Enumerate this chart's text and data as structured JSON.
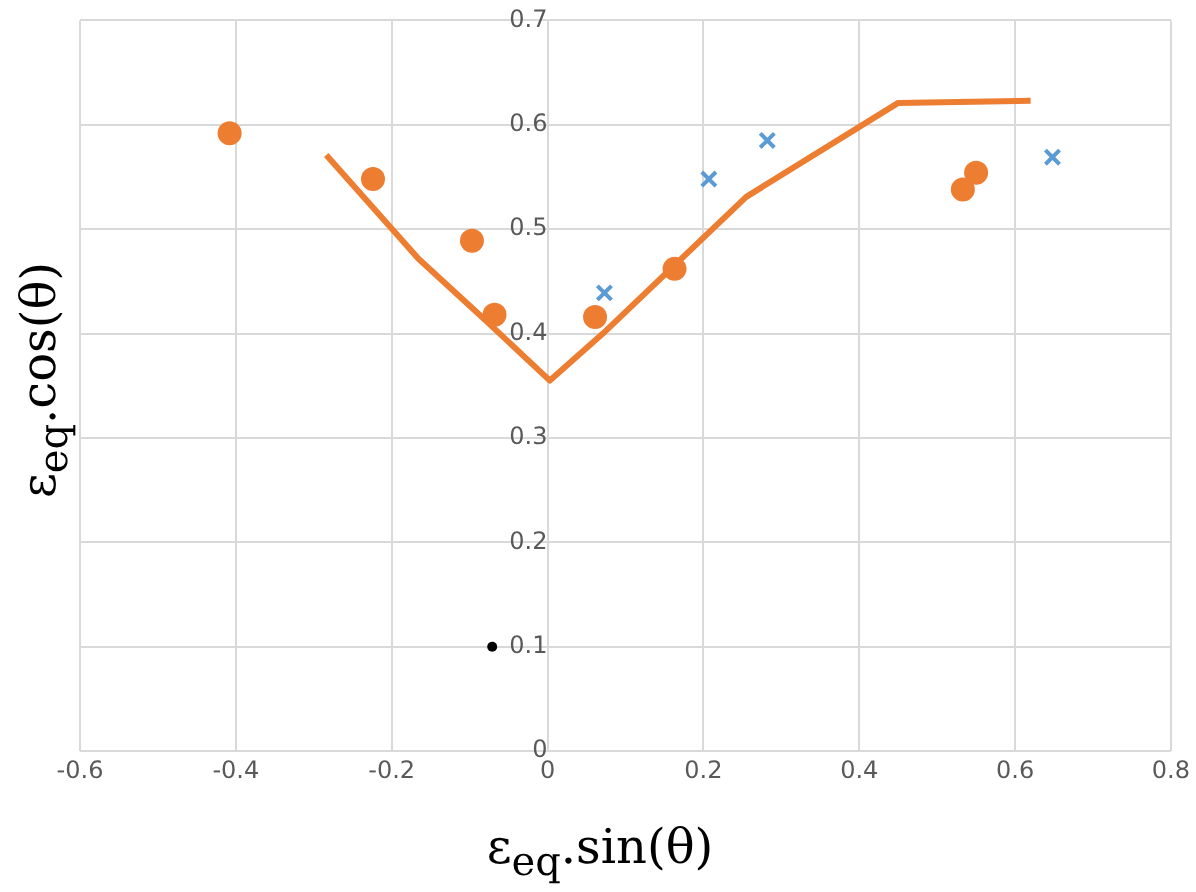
{
  "chart_data": {
    "type": "scatter",
    "xlabel": "ε$_{eq}$.sin(θ)",
    "ylabel": "ε$_{eq}$.cos(θ)",
    "xlim": [
      -0.6,
      0.8
    ],
    "xticks": [
      -0.6,
      -0.4,
      -0.2,
      0,
      0.2,
      0.4,
      0.6,
      0.8
    ],
    "ylim": [
      0,
      0.7
    ],
    "yticks": [
      0,
      0.1,
      0.2,
      0.3,
      0.4,
      0.5,
      0.6,
      0.7
    ],
    "grid": true,
    "legend": false,
    "series": [
      {
        "marker": "circle",
        "color": "#ed7d31",
        "x": [
          -0.408,
          -0.224,
          -0.097,
          -0.068,
          0.061,
          0.163,
          0.533,
          0.55
        ],
        "values": [
          0.592,
          0.548,
          0.489,
          0.418,
          0.416,
          0.462,
          0.538,
          0.554
        ]
      },
      {
        "marker": "cross",
        "color": "#5b9bd5",
        "x": [
          0.073,
          0.207,
          0.282,
          0.648
        ],
        "values": [
          0.439,
          0.548,
          0.585,
          0.569
        ]
      },
      {
        "marker": "circle",
        "color": "#000000",
        "x": [
          -0.071
        ],
        "values": [
          0.1
        ]
      },
      {
        "type": "line",
        "marker": "none",
        "color": "#ed7d31",
        "x": [
          -0.284,
          -0.166,
          -0.08,
          0.003,
          0.071,
          0.255,
          0.45,
          0.62
        ],
        "values": [
          0.571,
          0.472,
          0.413,
          0.355,
          0.4,
          0.531,
          0.621,
          0.623
        ]
      }
    ]
  }
}
